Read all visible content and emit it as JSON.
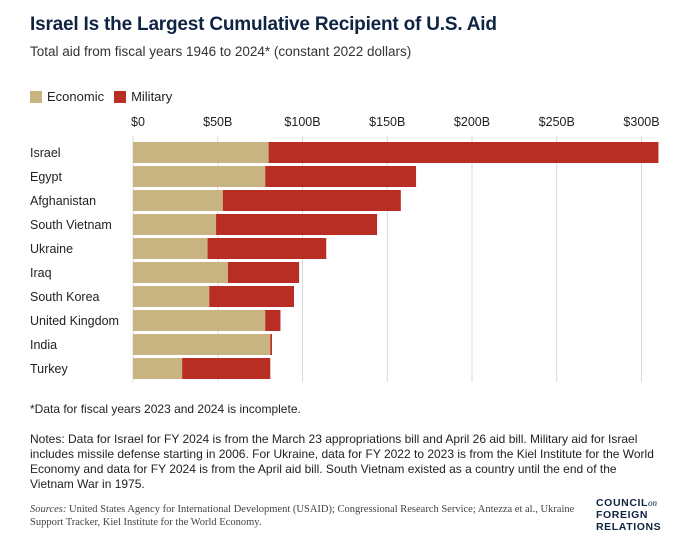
{
  "title": "Israel Is the Largest Cumulative Recipient of U.S. Aid",
  "subtitle": "Total aid from fiscal years 1946 to 2024* (constant 2022 dollars)",
  "legend": [
    {
      "label": "Economic",
      "color": "#c8b480"
    },
    {
      "label": "Military",
      "color": "#b82e24"
    }
  ],
  "chart_data": {
    "type": "bar",
    "orientation": "horizontal",
    "stacked": true,
    "categories": [
      "Israel",
      "Egypt",
      "Afghanistan",
      "South Vietnam",
      "Ukraine",
      "Iraq",
      "South Korea",
      "United Kingdom",
      "India",
      "Turkey"
    ],
    "series": [
      {
        "name": "Economic",
        "color": "#c8b480",
        "values": [
          80,
          78,
          53,
          49,
          44,
          56,
          45,
          78,
          81,
          29
        ]
      },
      {
        "name": "Military",
        "color": "#b82e24",
        "values": [
          230,
          89,
          105,
          95,
          70,
          42,
          50,
          9,
          1,
          52
        ]
      }
    ],
    "xticks": [
      "$0",
      "$50B",
      "$100B",
      "$150B",
      "$200B",
      "$250B",
      "$300B"
    ],
    "xtick_values": [
      0,
      50,
      100,
      150,
      200,
      250,
      300
    ],
    "xlim": [
      0,
      310
    ],
    "grid": true,
    "legend_position": "top-left"
  },
  "footnote": "*Data for fiscal years 2023 and 2024 is incomplete.",
  "notes": "Notes: Data for Israel for FY 2024 is from the March 23 appropriations bill and April 26 aid bill. Military aid for Israel includes missile defense starting in 2006. For Ukraine, data for FY 2022 to 2023 is from the Kiel Institute for the World Economy and data for FY 2024 is from the April aid bill. South Vietnam existed as a country until the end of the Vietnam War in 1975.",
  "sources_label": "Sources:",
  "sources": "United States Agency for International Development (USAID); Congressional Research Service; Antezza et al., Ukraine Support Tracker, Kiel Institute for the World Economy.",
  "logo": {
    "line1": "COUNCIL",
    "on": "on",
    "line2": "FOREIGN",
    "line3": "RELATIONS"
  }
}
